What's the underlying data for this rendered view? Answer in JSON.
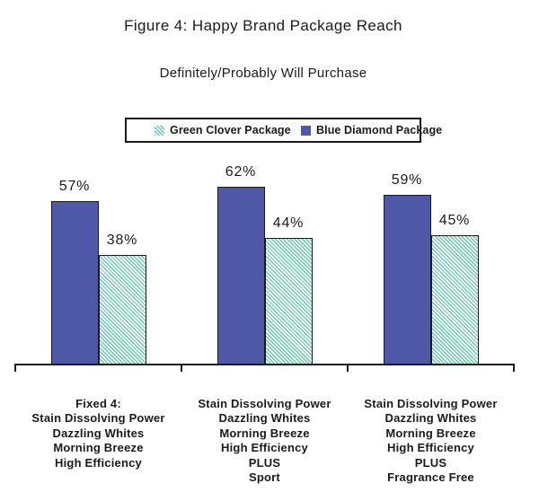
{
  "figure": {
    "title": "Figure 4: Happy Brand Package Reach",
    "subtitle": "Definitely/Probably Will Purchase"
  },
  "legend": {
    "items": [
      {
        "label": "Green Clover Package",
        "swatch": "green-hatch"
      },
      {
        "label": "Blue Diamond Package",
        "swatch": "blue-solid"
      }
    ]
  },
  "colors": {
    "blue_diamond": "#4f57a7",
    "green_clover": "#66c9a8",
    "outline": "#1b1b1b",
    "background": "#ffffff"
  },
  "chart_data": {
    "type": "bar",
    "title": "Figure 4: Happy Brand Package Reach",
    "subtitle": "Definitely/Probably Will Purchase",
    "xlabel": "",
    "ylabel": "",
    "ylim": [
      0,
      70
    ],
    "grid": false,
    "y_axis_shown": false,
    "legend_position": "top-center-boxed",
    "value_label_format": "percent",
    "categories": [
      [
        "Fixed 4:",
        "Stain Dissolving Power",
        "Dazzling Whites",
        "Morning Breeze",
        "High Efficiency"
      ],
      [
        "Stain Dissolving Power",
        "Dazzling Whites",
        "Morning Breeze",
        "High Efficiency",
        "PLUS",
        "Sport"
      ],
      [
        "Stain Dissolving Power",
        "Dazzling Whites",
        "Morning Breeze",
        "High Efficiency",
        "PLUS",
        "Fragrance Free"
      ]
    ],
    "series": [
      {
        "name": "Blue Diamond Package",
        "style": "solid",
        "color": "#4f57a7",
        "values": [
          57,
          62,
          59
        ],
        "labels": [
          "57%",
          "62%",
          "59%"
        ]
      },
      {
        "name": "Green Clover Package",
        "style": "diagonal-hatch",
        "color": "#66c9a8",
        "values": [
          38,
          44,
          45
        ],
        "labels": [
          "38%",
          "44%",
          "45%"
        ]
      }
    ]
  }
}
